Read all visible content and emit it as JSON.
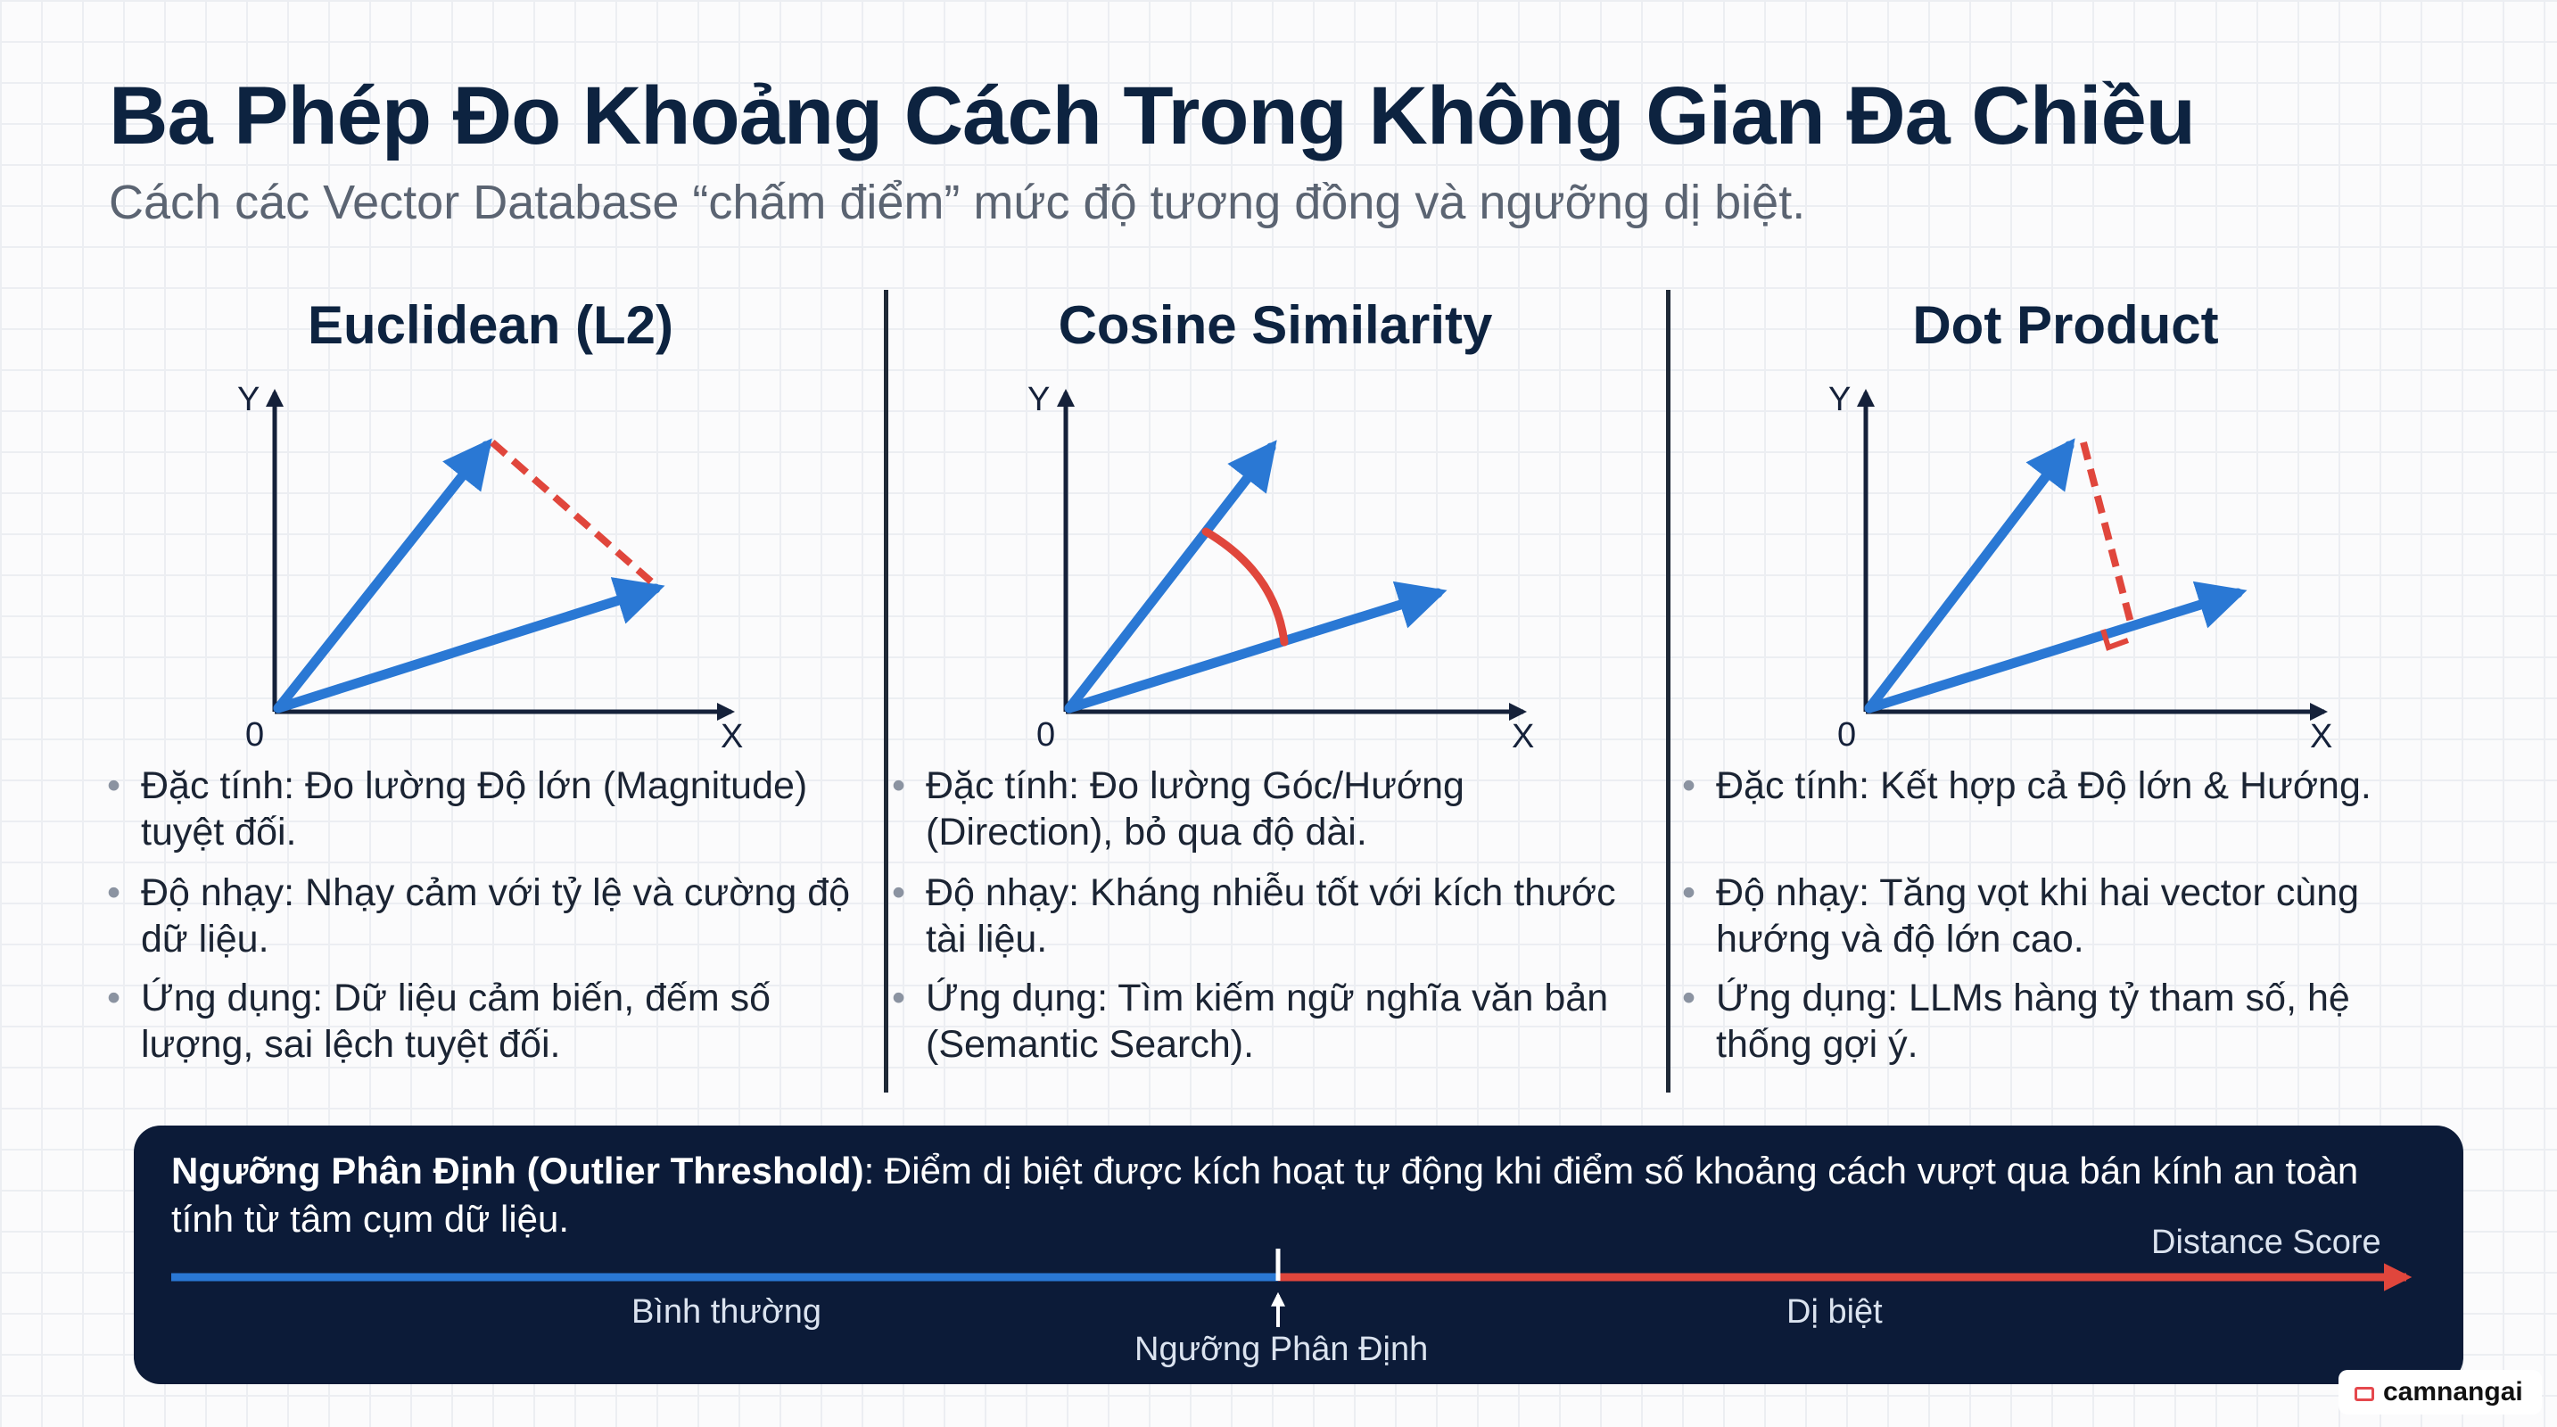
{
  "header": {
    "title": "Ba Phép Đo Khoảng Cách Trong Không Gian Đa Chiều",
    "subtitle": "Cách các Vector Database “chấm điểm” mức độ tương đồng và ngưỡng dị biệt."
  },
  "axis_labels": {
    "y": "Y",
    "x": "X",
    "origin": "0"
  },
  "colors": {
    "vector": "#2a78d4",
    "accent": "#e0463c",
    "axis": "#15213a",
    "banner": "#0c1b38"
  },
  "panels": [
    {
      "title": "Euclidean (L2)",
      "bullets": [
        "Đặc tính: Đo lường Độ lớn (Magnitude) tuyệt đối.",
        "Độ nhạy: Nhạy cảm với tỷ lệ và cường độ dữ liệu.",
        "Ứng dụng: Dữ liệu cảm biến, đếm số lượng, sai lệch tuyệt đối."
      ]
    },
    {
      "title": "Cosine Similarity",
      "bullets": [
        "Đặc tính: Đo lường Góc/Hướng (Direction), bỏ qua độ dài.",
        "Độ nhạy: Kháng nhiễu tốt với kích thước tài liệu.",
        "Ứng dụng: Tìm kiếm ngữ nghĩa văn bản (Semantic Search)."
      ]
    },
    {
      "title": "Dot Product",
      "bullets": [
        "Đặc tính: Kết hợp cả Độ lớn & Hướng.",
        "Độ nhạy: Tăng vọt khi hai vector cùng hướng và độ lớn cao.",
        "Ứng dụng: LLMs hàng tỷ tham số, hệ thống gợi ý."
      ]
    }
  ],
  "threshold": {
    "label": "Ngưỡng Phân Định (Outlier Threshold)",
    "text": ": Điểm dị biệt được kích hoạt tự động khi điểm số khoảng cách vượt qua bán kính an toàn tính từ tâm cụm dữ liệu.",
    "normal": "Bình thường",
    "outlier": "Dị biệt",
    "marker": "Ngưỡng Phân Định",
    "axis": "Distance Score"
  },
  "badge": {
    "text": "camnangai"
  }
}
